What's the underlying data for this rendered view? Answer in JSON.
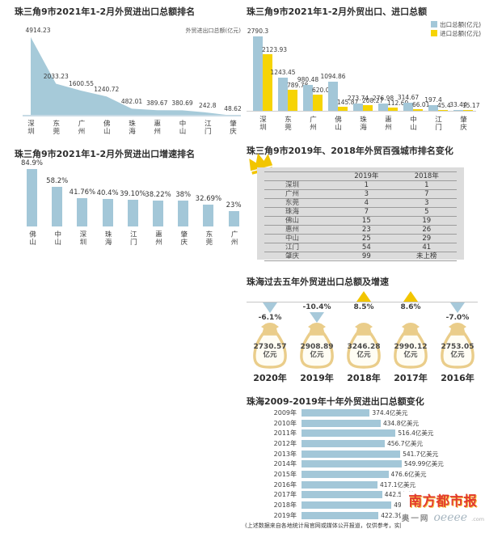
{
  "page": {
    "footnote": "(上述数据来自各地统计局官网或媒体公开报道，仅供参考，实际数据",
    "logo": {
      "brand": "南方都市报",
      "sub_brand": "奥一网",
      "domain": "oeeee",
      "domain_suffix": ".com"
    }
  },
  "colors": {
    "bar_blue": "#a3c7d8",
    "bar_yellow": "#f6d404",
    "area_blue": "#a6cad9",
    "axis_strip": "#c8dbe5",
    "gold": "#f2c500",
    "bag_tan": "#eacd8a",
    "panel_gray": "#dcdcdc",
    "logo_red": "#e23a2e"
  },
  "chart_data": [
    {
      "id": "total_rank",
      "type": "area",
      "title": "珠三角9市2021年1-2月外贸进出口总额排名",
      "unit_label": "外贸进出口总额(亿元)",
      "categories": [
        "深圳",
        "东莞",
        "广州",
        "佛山",
        "珠海",
        "惠州",
        "中山",
        "江门",
        "肇庆"
      ],
      "values": [
        4914.23,
        2033.23,
        1600.55,
        1240.72,
        482.01,
        389.67,
        380.69,
        242.8,
        48.62
      ],
      "labels": [
        "4914.23",
        "2033.23",
        "1600.55",
        "1240.72",
        "482.01",
        "389.67",
        "380.69",
        "242.8",
        "48.62"
      ],
      "ylim": [
        0,
        4914.23
      ],
      "grid": false
    },
    {
      "id": "export_import",
      "type": "bar",
      "title": "珠三角9市2021年1-2月外贸出口、进口总额",
      "legend": [
        "出口总额(亿元)",
        "进口总额(亿元)"
      ],
      "legend_position": "top-right",
      "categories": [
        "深圳",
        "东莞",
        "广州",
        "佛山",
        "珠海",
        "惠州",
        "中山",
        "江门",
        "肇庆"
      ],
      "series": [
        {
          "name": "出口总额(亿元)",
          "values": [
            2790.3,
            1243.45,
            980.48,
            1094.86,
            273.74,
            276.98,
            314.67,
            197.4,
            33.44
          ],
          "labels": [
            "2790.3",
            "1243.45",
            "980.48",
            "1094.86",
            "273.74",
            "276.98",
            "314.67",
            "197.4",
            "33.44"
          ]
        },
        {
          "name": "进口总额(亿元)",
          "values": [
            2123.93,
            789.78,
            620.06,
            145.87,
            208.27,
            112.69,
            66.01,
            45.4,
            15.17
          ],
          "labels": [
            "2123.93",
            "789.78",
            "620.06",
            "145.87",
            "208.27",
            "112.69",
            "66.01",
            "45.4",
            "15.17"
          ]
        }
      ],
      "ylim": [
        0,
        2790.3
      ],
      "grid": false
    },
    {
      "id": "growth_rank",
      "type": "bar",
      "title": "珠三角9市2021年1-2月外贸进出口增速排名",
      "categories": [
        "佛山",
        "中山",
        "深圳",
        "珠海",
        "江门",
        "惠州",
        "肇庆",
        "东莞",
        "广州"
      ],
      "values": [
        84.9,
        58.2,
        41.76,
        40.4,
        39.1,
        38.22,
        38,
        32.69,
        23
      ],
      "labels": [
        "84.9%",
        "58.2%",
        "41.76%",
        "40.4%",
        "39.10%",
        "38.22%",
        "38%",
        "32.69%",
        "23%"
      ],
      "ylim": [
        0,
        90
      ],
      "grid": false
    },
    {
      "id": "city_rank_table",
      "type": "table",
      "title": "珠三角9市2019年、2018年外贸百强城市排名变化",
      "columns": [
        "",
        "2019年",
        "2018年"
      ],
      "rows": [
        [
          "深圳",
          "1",
          "1"
        ],
        [
          "广州",
          "3",
          "7"
        ],
        [
          "东莞",
          "4",
          "3"
        ],
        [
          "珠海",
          "7",
          "5"
        ],
        [
          "佛山",
          "15",
          "19"
        ],
        [
          "惠州",
          "23",
          "26"
        ],
        [
          "中山",
          "25",
          "29"
        ],
        [
          "江门",
          "54",
          "41"
        ],
        [
          "肇庆",
          "99",
          "未上榜"
        ]
      ]
    },
    {
      "id": "five_year",
      "type": "pictorial",
      "title": "珠海过去五年外贸进出口总额及增速",
      "items": [
        {
          "year": "2020年",
          "value": "2730.57",
          "unit": "亿元",
          "growth": "-6.1%",
          "direction": "down",
          "label_first": false
        },
        {
          "year": "2019年",
          "value": "2908.89",
          "unit": "亿元",
          "growth": "-10.4%",
          "direction": "down",
          "label_first": true
        },
        {
          "year": "2018年",
          "value": "3246.28",
          "unit": "亿元",
          "growth": "8.5%",
          "direction": "up",
          "label_first": false
        },
        {
          "year": "2017年",
          "value": "2990.12",
          "unit": "亿元",
          "growth": "8.6%",
          "direction": "up",
          "label_first": false
        },
        {
          "year": "2016年",
          "value": "2753.05",
          "unit": "亿元",
          "growth": "-7.0%",
          "direction": "down",
          "label_first": false
        }
      ]
    },
    {
      "id": "decade",
      "type": "bar",
      "title": "珠海2009-2019年十年外贸进出口总额变化",
      "orientation": "horizontal",
      "categories": [
        "2009年",
        "2010年",
        "2011年",
        "2012年",
        "2013年",
        "2014年",
        "2015年",
        "2016年",
        "2017年",
        "2018年",
        "2019年"
      ],
      "values": [
        374.4,
        434.8,
        516.4,
        456.7,
        541.7,
        549.99,
        476.6,
        417.1,
        442.5,
        493.3,
        422.3
      ],
      "labels": [
        "374.4亿美元",
        "434.8亿美元",
        "516.4亿美元",
        "456.7亿美元",
        "541.7亿美元",
        "549.99亿美元",
        "476.6亿美元",
        "417.1亿美元",
        "442.5亿美元",
        "493.3亿美元",
        "422.3亿美元"
      ],
      "xlim": [
        0,
        560
      ],
      "grid": false
    }
  ]
}
